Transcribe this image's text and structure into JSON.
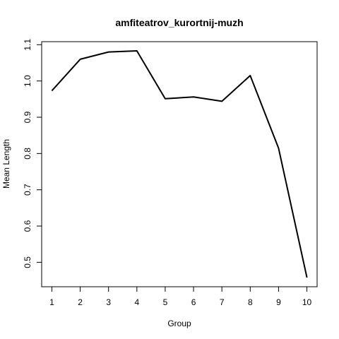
{
  "chart_data": {
    "type": "line",
    "title": "amfiteatrov_kurortnij-muzh",
    "xlabel": "Group",
    "ylabel": "Mean Length",
    "x": [
      1,
      2,
      3,
      4,
      5,
      6,
      7,
      8,
      9,
      10
    ],
    "values": [
      0.973,
      1.06,
      1.08,
      1.083,
      0.951,
      0.956,
      0.944,
      1.015,
      0.815,
      0.458
    ],
    "xticks": [
      "1",
      "2",
      "3",
      "4",
      "5",
      "6",
      "7",
      "8",
      "9",
      "10"
    ],
    "yticks": [
      "0.5",
      "0.6",
      "0.7",
      "0.8",
      "0.9",
      "1.0",
      "1.1"
    ],
    "ytick_values": [
      0.5,
      0.6,
      0.7,
      0.8,
      0.9,
      1.0,
      1.1
    ],
    "xlim": [
      0.64,
      10.36
    ],
    "ylim": [
      0.4326,
      1.1084
    ],
    "line_color": "#000000",
    "grid": false,
    "legend": "none"
  }
}
